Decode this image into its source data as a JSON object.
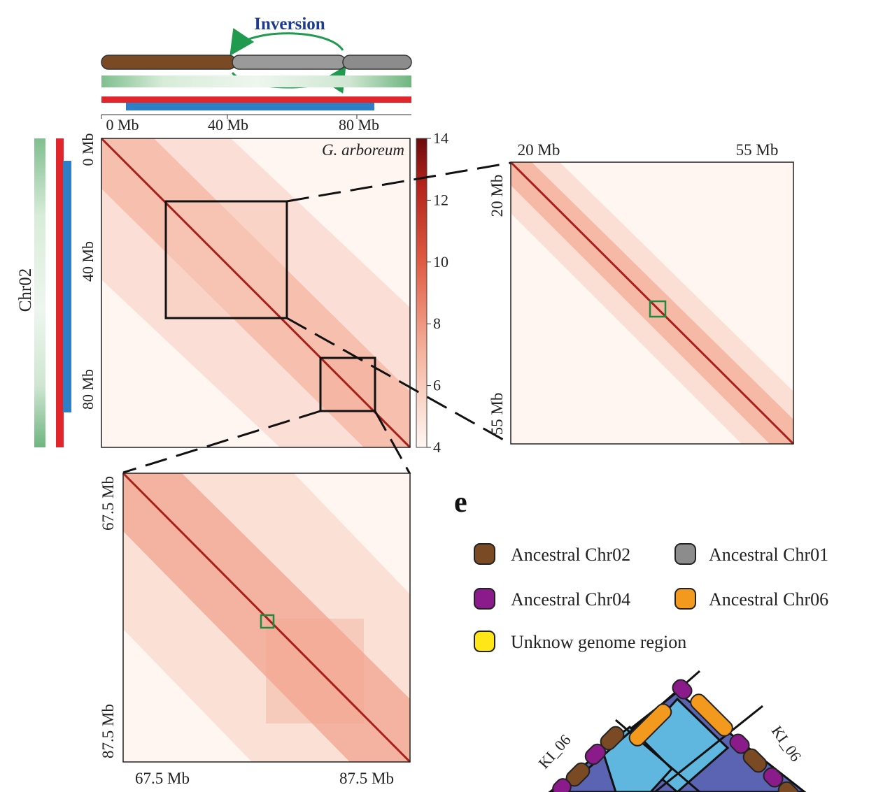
{
  "inversion": {
    "title": "Inversion",
    "chr_colors": {
      "left": "#7a4a24",
      "middle": "#9a9a9a",
      "right": "#8c8c8c"
    },
    "arrow_color": "#1f9a4e",
    "axis_ticks": [
      "0 Mb",
      "40 Mb",
      "80 Mb"
    ]
  },
  "main_map": {
    "species_label": "G. arboreum",
    "chromosome_label": "Chr02",
    "y_ticks": [
      "0 Mb",
      "40 Mb",
      "80 Mb"
    ],
    "colorbar": {
      "ticks": [
        "14",
        "12",
        "10",
        "8",
        "6",
        "4"
      ],
      "min": 4,
      "max": 14
    }
  },
  "zoom_right": {
    "x_ticks": [
      "20 Mb",
      "55 Mb"
    ],
    "y_ticks": [
      "20 Mb",
      "55 Mb"
    ]
  },
  "zoom_bottom": {
    "x_ticks": [
      "67.5 Mb",
      "87.5 Mb"
    ],
    "y_ticks": [
      "67.5 Mb",
      "87.5 Mb"
    ]
  },
  "panel_e": {
    "label": "e",
    "legend": [
      {
        "label": "Ancestral Chr02",
        "color": "#7a4a24"
      },
      {
        "label": "Ancestral Chr01",
        "color": "#8c8c8c"
      },
      {
        "label": "Ancestral Chr04",
        "color": "#8b1a8b"
      },
      {
        "label": "Ancestral Chr06",
        "color": "#f39a1e"
      },
      {
        "label": "Unknow genome region",
        "color": "#ffe619"
      }
    ],
    "karyotype_labels": [
      "KI_06",
      "KI_06"
    ],
    "colors": {
      "dark_blue": "#5b63b3",
      "light_blue": "#5fb6df"
    }
  }
}
